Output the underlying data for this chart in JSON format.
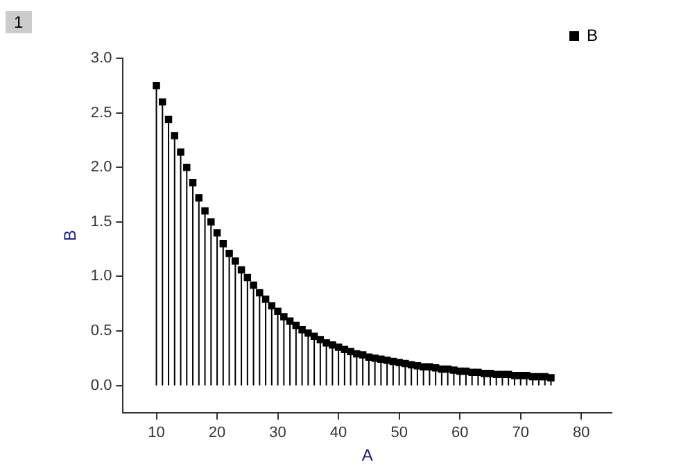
{
  "chart_data": {
    "type": "lollipop",
    "xlabel": "A",
    "ylabel": "B",
    "annotations": [
      "1"
    ],
    "x": [
      10,
      11,
      12,
      13,
      14,
      15,
      16,
      17,
      18,
      19,
      20,
      21,
      22,
      23,
      24,
      25,
      26,
      27,
      28,
      29,
      30,
      31,
      32,
      33,
      34,
      35,
      36,
      37,
      38,
      39,
      40,
      41,
      42,
      43,
      44,
      45,
      46,
      47,
      48,
      49,
      50,
      51,
      52,
      53,
      54,
      55,
      56,
      57,
      58,
      59,
      60,
      61,
      62,
      63,
      64,
      65,
      66,
      67,
      68,
      69,
      70,
      71,
      72,
      73,
      74,
      75
    ],
    "series": [
      {
        "name": "B",
        "color": "#000000",
        "values": [
          2.75,
          2.6,
          2.44,
          2.29,
          2.14,
          2.0,
          1.86,
          1.72,
          1.6,
          1.5,
          1.4,
          1.3,
          1.21,
          1.14,
          1.06,
          0.99,
          0.92,
          0.85,
          0.79,
          0.73,
          0.68,
          0.63,
          0.59,
          0.55,
          0.51,
          0.48,
          0.45,
          0.42,
          0.39,
          0.37,
          0.35,
          0.33,
          0.31,
          0.29,
          0.28,
          0.26,
          0.25,
          0.24,
          0.23,
          0.22,
          0.21,
          0.2,
          0.19,
          0.18,
          0.17,
          0.17,
          0.16,
          0.15,
          0.15,
          0.14,
          0.13,
          0.13,
          0.12,
          0.12,
          0.11,
          0.11,
          0.1,
          0.1,
          0.1,
          0.09,
          0.09,
          0.09,
          0.08,
          0.08,
          0.08,
          0.07
        ]
      }
    ],
    "xlim": [
      4.5,
      85
    ],
    "xticks": [
      10,
      20,
      30,
      40,
      50,
      60,
      70,
      80
    ],
    "ylim": [
      -0.25,
      3.0
    ],
    "yticks": [
      {
        "value": 0,
        "label": "0.0"
      },
      {
        "value": 0.5,
        "label": "0.5"
      },
      {
        "value": 1,
        "label": "1.0"
      },
      {
        "value": 1.5,
        "label": "1.5"
      },
      {
        "value": 2,
        "label": "2.0"
      },
      {
        "value": 2.5,
        "label": "2.5"
      },
      {
        "value": 3,
        "label": "3.0"
      }
    ],
    "legend": "top right",
    "marker": "square"
  }
}
